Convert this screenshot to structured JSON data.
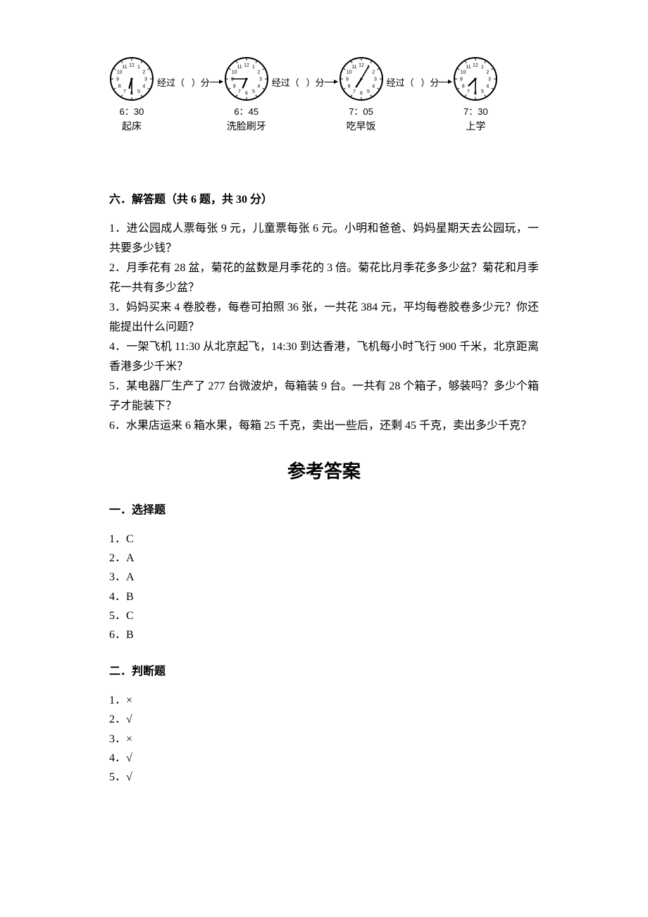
{
  "clocks": {
    "numbers": [
      "12",
      "1",
      "2",
      "3",
      "4",
      "5",
      "6",
      "7",
      "8",
      "9",
      "10",
      "11"
    ],
    "face_stroke": "#000000",
    "face_fill": "#ffffff",
    "tick_color": "#000000",
    "number_color": "#000000",
    "number_fontsize": 7,
    "hand_color": "#000000",
    "radius": 30,
    "items": [
      {
        "time_label": "6：30",
        "caption": "起床",
        "hour_angle": 195,
        "minute_angle": 180
      },
      {
        "time_label": "6：45",
        "caption": "洗脸刷牙",
        "hour_angle": 202.5,
        "minute_angle": 270
      },
      {
        "time_label": "7：05",
        "caption": "吃早饭",
        "hour_angle": 212.5,
        "minute_angle": 30
      },
      {
        "time_label": "7：30",
        "caption": "上学",
        "hour_angle": 225,
        "minute_angle": 180
      }
    ],
    "connector_prefix": "经过（",
    "connector_suffix": "）分"
  },
  "section6": {
    "title": "六．解答题（共 6 题，共 30 分）",
    "questions": [
      "1．进公园成人票每张 9 元，儿童票每张 6 元。小明和爸爸、妈妈星期天去公园玩，一共要多少钱？",
      "2．月季花有 28 盆，菊花的盆数是月季花的 3 倍。菊花比月季花多多少盆？菊花和月季花一共有多少盆？",
      "3．妈妈买来 4 卷胶卷，每卷可拍照 36 张，一共花 384 元，平均每卷胶卷多少元？你还能提出什么问题？",
      "4．一架飞机 11:30 从北京起飞，14:30 到达香港，飞机每小时飞行 900 千米，北京距离香港多少千米？",
      "5．某电器厂生产了 277 台微波炉，每箱装 9 台。一共有 28 个箱子，够装吗？多少个箱子才能装下？",
      "6．水果店运来 6 箱水果，每箱 25 千克，卖出一些后，还剩 45 千克，卖出多少千克？"
    ]
  },
  "answers": {
    "title": "参考答案",
    "section1": {
      "title": "一．选择题",
      "items": [
        "1．C",
        "2．A",
        "3．A",
        "4．B",
        "5．C",
        "6．B"
      ]
    },
    "section2": {
      "title": "二．判断题",
      "items": [
        "1．×",
        "2．√",
        "3．×",
        "4．√",
        "5．√"
      ]
    }
  }
}
